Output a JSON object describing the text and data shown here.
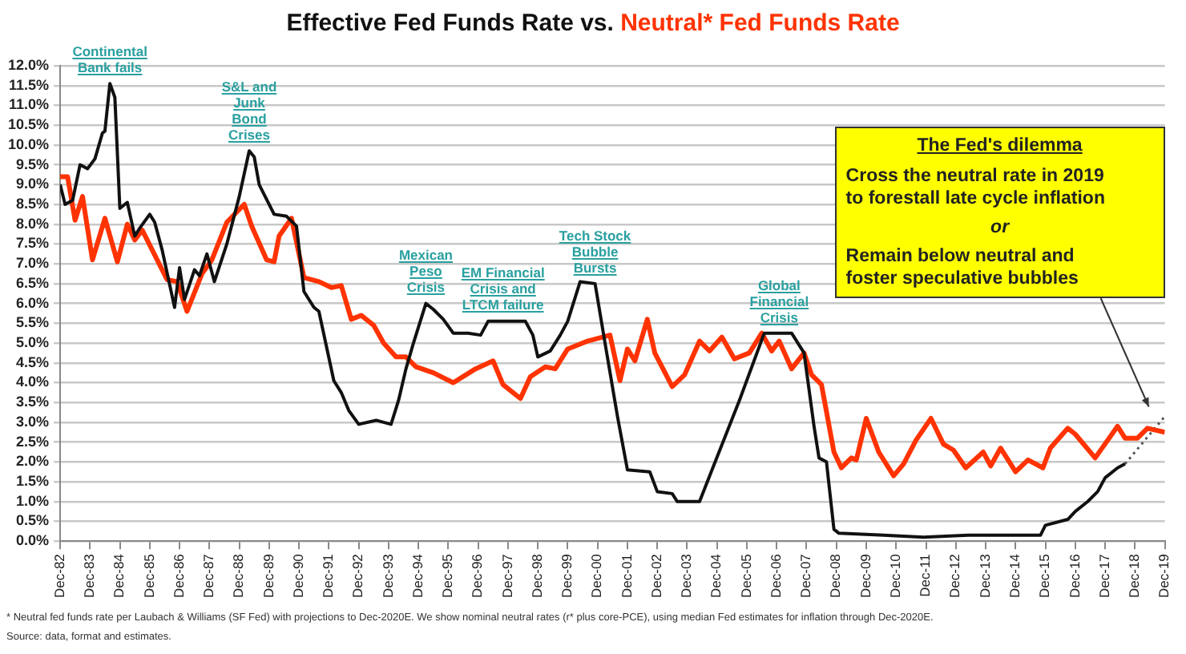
{
  "chart_data": {
    "type": "line",
    "title": "Effective Fed Funds Rate vs. Neutral* Fed Funds Rate",
    "xlim": [
      "1982-12",
      "2019-12"
    ],
    "xticks": [
      {
        "value": "1982-12",
        "label": "Dec-82"
      },
      {
        "value": "1983-12",
        "label": "Dec-83"
      },
      {
        "value": "1984-12",
        "label": "Dec-84"
      },
      {
        "value": "1985-12",
        "label": "Dec-85"
      },
      {
        "value": "1986-12",
        "label": "Dec-86"
      },
      {
        "value": "1987-12",
        "label": "Dec-87"
      },
      {
        "value": "1988-12",
        "label": "Dec-88"
      },
      {
        "value": "1989-12",
        "label": "Dec-89"
      },
      {
        "value": "1990-12",
        "label": "Dec-90"
      },
      {
        "value": "1991-12",
        "label": "Dec-91"
      },
      {
        "value": "1992-12",
        "label": "Dec-92"
      },
      {
        "value": "1993-12",
        "label": "Dec-93"
      },
      {
        "value": "1994-12",
        "label": "Dec-94"
      },
      {
        "value": "1995-12",
        "label": "Dec-95"
      },
      {
        "value": "1996-12",
        "label": "Dec-96"
      },
      {
        "value": "1997-12",
        "label": "Dec-97"
      },
      {
        "value": "1998-12",
        "label": "Dec-98"
      },
      {
        "value": "1999-12",
        "label": "Dec-99"
      },
      {
        "value": "2000-12",
        "label": "Dec-00"
      },
      {
        "value": "2001-12",
        "label": "Dec-01"
      },
      {
        "value": "2002-12",
        "label": "Dec-02"
      },
      {
        "value": "2003-12",
        "label": "Dec-03"
      },
      {
        "value": "2004-12",
        "label": "Dec-04"
      },
      {
        "value": "2005-12",
        "label": "Dec-05"
      },
      {
        "value": "2006-12",
        "label": "Dec-06"
      },
      {
        "value": "2007-12",
        "label": "Dec-07"
      },
      {
        "value": "2008-12",
        "label": "Dec-08"
      },
      {
        "value": "2009-12",
        "label": "Dec-09"
      },
      {
        "value": "2010-12",
        "label": "Dec-10"
      },
      {
        "value": "2011-12",
        "label": "Dec-11"
      },
      {
        "value": "2012-12",
        "label": "Dec-12"
      },
      {
        "value": "2013-12",
        "label": "Dec-13"
      },
      {
        "value": "2014-12",
        "label": "Dec-14"
      },
      {
        "value": "2015-12",
        "label": "Dec-15"
      },
      {
        "value": "2016-12",
        "label": "Dec-16"
      },
      {
        "value": "2017-12",
        "label": "Dec-17"
      },
      {
        "value": "2018-12",
        "label": "Dec-18"
      },
      {
        "value": "2019-12",
        "label": "Dec-19"
      }
    ],
    "ylim": [
      0,
      12
    ],
    "yticks": [
      {
        "value": 0,
        "label": "0.0%"
      },
      {
        "value": 0.5,
        "label": "0.5%"
      },
      {
        "value": 1,
        "label": "1.0%"
      },
      {
        "value": 1.5,
        "label": "1.5%"
      },
      {
        "value": 2,
        "label": "2.0%"
      },
      {
        "value": 2.5,
        "label": "2.5%"
      },
      {
        "value": 3,
        "label": "3.0%"
      },
      {
        "value": 3.5,
        "label": "3.5%"
      },
      {
        "value": 4,
        "label": "4.0%"
      },
      {
        "value": 4.5,
        "label": "4.5%"
      },
      {
        "value": 5,
        "label": "5.0%"
      },
      {
        "value": 5.5,
        "label": "5.5%"
      },
      {
        "value": 6,
        "label": "6.0%"
      },
      {
        "value": 6.5,
        "label": "6.5%"
      },
      {
        "value": 7,
        "label": "7.0%"
      },
      {
        "value": 7.5,
        "label": "7.5%"
      },
      {
        "value": 8,
        "label": "8.0%"
      },
      {
        "value": 8.5,
        "label": "8.5%"
      },
      {
        "value": 9,
        "label": "9.0%"
      },
      {
        "value": 9.5,
        "label": "9.5%"
      },
      {
        "value": 10,
        "label": "10.0%"
      },
      {
        "value": 10.5,
        "label": "10.5%"
      },
      {
        "value": 11,
        "label": "11.0%"
      },
      {
        "value": 11.5,
        "label": "11.5%"
      },
      {
        "value": 12,
        "label": "12.0%"
      }
    ],
    "grid": "y",
    "marker": "none",
    "series": [
      {
        "color": "#111111",
        "x": [
          "1982-12",
          "1983-02",
          "1983-05",
          "1983-08",
          "1983-11",
          "1984-02",
          "1984-05",
          "1984-06",
          "1984-08",
          "1984-10",
          "1984-12",
          "1985-03",
          "1985-06",
          "1985-08",
          "1985-12",
          "1986-02",
          "1986-05",
          "1986-10",
          "1986-12",
          "1987-02",
          "1987-06",
          "1987-08",
          "1987-11",
          "1988-02",
          "1988-07",
          "1988-12",
          "1989-04",
          "1989-06",
          "1989-08",
          "1990-02",
          "1990-07",
          "1990-11",
          "1991-02",
          "1991-06",
          "1991-08",
          "1992-02",
          "1992-05",
          "1992-08",
          "1992-12",
          "1993-07",
          "1994-01",
          "1994-04",
          "1994-07",
          "1994-10",
          "1995-03",
          "1995-06",
          "1995-10",
          "1996-02",
          "1996-08",
          "1997-01",
          "1997-04",
          "1998-07",
          "1998-10",
          "1998-12",
          "1999-05",
          "1999-09",
          "1999-12",
          "2000-05",
          "2000-11",
          "2001-03",
          "2001-08",
          "2001-12",
          "2002-09",
          "2002-12",
          "2003-06",
          "2003-08",
          "2004-05",
          "2004-10",
          "2005-09",
          "2006-07",
          "2007-06",
          "2007-11",
          "2008-03",
          "2008-05",
          "2008-08",
          "2008-11",
          "2009-01",
          "2010-07",
          "2011-11",
          "2013-05",
          "2015-10",
          "2015-12",
          "2016-09",
          "2016-12",
          "2017-05",
          "2017-09",
          "2017-12",
          "2018-05",
          "2018-08"
        ],
        "values": [
          9.0,
          8.5,
          8.6,
          9.5,
          9.4,
          9.65,
          10.3,
          10.35,
          11.55,
          11.2,
          8.4,
          8.55,
          7.7,
          7.9,
          8.25,
          8.05,
          7.35,
          5.9,
          6.9,
          6.1,
          6.85,
          6.7,
          7.25,
          6.55,
          7.5,
          8.7,
          9.85,
          9.7,
          9.0,
          8.25,
          8.2,
          7.95,
          6.3,
          5.9,
          5.8,
          4.05,
          3.75,
          3.3,
          2.95,
          3.05,
          2.95,
          3.55,
          4.35,
          5.0,
          6.0,
          5.85,
          5.6,
          5.25,
          5.25,
          5.2,
          5.55,
          5.55,
          5.2,
          4.65,
          4.8,
          5.2,
          5.55,
          6.55,
          6.5,
          5.0,
          3.15,
          1.8,
          1.75,
          1.25,
          1.2,
          1.0,
          1.0,
          1.8,
          3.55,
          5.25,
          5.25,
          4.75,
          2.9,
          2.1,
          2.0,
          0.3,
          0.2,
          0.15,
          0.1,
          0.15,
          0.15,
          0.4,
          0.55,
          0.75,
          1.0,
          1.25,
          1.6,
          1.85,
          1.95
        ]
      },
      {
        "color": "#ff3300",
        "x": [
          "1982-12",
          "1983-03",
          "1983-06",
          "1983-09",
          "1984-01",
          "1984-06",
          "1984-11",
          "1985-03",
          "1985-06",
          "1985-09",
          "1986-01",
          "1986-07",
          "1986-11",
          "1987-03",
          "1987-09",
          "1988-01",
          "1988-07",
          "1989-02",
          "1989-05",
          "1989-11",
          "1990-02",
          "1990-04",
          "1990-09",
          "1991-02",
          "1991-08",
          "1992-01",
          "1992-05",
          "1992-09",
          "1993-01",
          "1993-06",
          "1993-10",
          "1994-03",
          "1994-07",
          "1994-11",
          "1995-06",
          "1996-02",
          "1996-11",
          "1997-06",
          "1997-10",
          "1998-05",
          "1998-09",
          "1999-03",
          "1999-07",
          "1999-12",
          "2000-08",
          "2001-05",
          "2001-09",
          "2001-12",
          "2002-03",
          "2002-08",
          "2002-11",
          "2003-06",
          "2003-11",
          "2004-05",
          "2004-09",
          "2005-02",
          "2005-07",
          "2006-01",
          "2006-06",
          "2006-10",
          "2007-01",
          "2007-06",
          "2007-11",
          "2008-02",
          "2008-06",
          "2008-11",
          "2009-02",
          "2009-06",
          "2009-08",
          "2009-12",
          "2010-05",
          "2010-11",
          "2011-03",
          "2011-08",
          "2012-02",
          "2012-07",
          "2012-11",
          "2013-04",
          "2013-11",
          "2014-02",
          "2014-06",
          "2014-12",
          "2015-05",
          "2015-11",
          "2016-02",
          "2016-09",
          "2016-12",
          "2017-08",
          "2018-05",
          "2018-08",
          "2019-01",
          "2019-05",
          "2019-12"
        ],
        "values": [
          9.2,
          9.2,
          8.1,
          8.7,
          7.1,
          8.15,
          7.05,
          8.0,
          7.6,
          7.85,
          7.35,
          6.6,
          6.55,
          5.8,
          6.75,
          7.1,
          8.05,
          8.5,
          7.95,
          7.1,
          7.05,
          7.7,
          8.15,
          6.65,
          6.55,
          6.4,
          6.45,
          5.6,
          5.7,
          5.45,
          5.0,
          4.65,
          4.65,
          4.4,
          4.25,
          4.0,
          4.35,
          4.55,
          3.95,
          3.6,
          4.15,
          4.4,
          4.35,
          4.85,
          5.05,
          5.2,
          4.05,
          4.85,
          4.55,
          5.6,
          4.75,
          3.9,
          4.2,
          5.05,
          4.8,
          5.15,
          4.6,
          4.75,
          5.25,
          4.8,
          5.05,
          4.35,
          4.75,
          4.2,
          3.95,
          2.25,
          1.85,
          2.1,
          2.05,
          3.1,
          2.25,
          1.65,
          1.95,
          2.55,
          3.1,
          2.45,
          2.3,
          1.85,
          2.25,
          1.9,
          2.35,
          1.75,
          2.05,
          1.85,
          2.35,
          2.85,
          2.7,
          2.1,
          2.9,
          2.6,
          2.6,
          2.85,
          2.75
        ]
      },
      {
        "color": "#555555",
        "line_style": "dotted",
        "x": [
          "2018-08",
          "2019-12"
        ],
        "values": [
          1.95,
          3.15
        ]
      }
    ],
    "annotations": [
      {
        "text": "Continental\nBank fails",
        "x": "1984-08",
        "y": 11.55
      },
      {
        "text": "S&L and\nJunk\nBond\nCrises",
        "x": "1989-04",
        "y": 9.85
      },
      {
        "text": "Mexican\nPeso\nCrisis",
        "x": "1995-03",
        "y": 6.0
      },
      {
        "text": "EM Financial\nCrisis and\nLTCM failure",
        "x": "1997-10",
        "y": 5.55
      },
      {
        "text": "Tech Stock\nBubble\nBursts",
        "x": "2000-11",
        "y": 6.5
      },
      {
        "text": "Global\nFinancial\nCrisis",
        "x": "2007-01",
        "y": 5.25
      },
      "The Fed's dilemma\nCross the neutral rate in 2019\nto forestall late cycle inflation\nor\nRemain below neutral and\nfoster speculative bubbles",
      "* Neutral fed funds rate per Laubach & Williams (SF Fed) with projections to Dec-2020E. We show nominal neutral rates (r* plus core-PCE), using median Fed estimates for inflation through Dec-2020E.",
      "Source: data, format and estimates."
    ]
  }
}
